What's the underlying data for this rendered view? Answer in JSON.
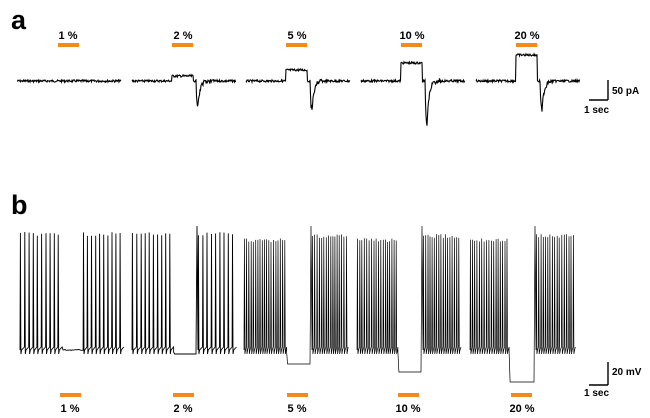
{
  "panels": [
    {
      "letter": "a",
      "recording": "current",
      "stimulus_labels": [
        "1 %",
        "2 %",
        "5 %",
        "10 %",
        "20 %"
      ],
      "stim_bar_color": "#f28a1c",
      "trace_color": "#000000",
      "scalebar": {
        "amplitude_label": "50 pA",
        "time_label": "1 sec"
      }
    },
    {
      "letter": "b",
      "recording": "voltage",
      "stimulus_labels": [
        "1 %",
        "2 %",
        "5 %",
        "10 %",
        "20 %"
      ],
      "stim_bar_color": "#f28a1c",
      "trace_color": "#000000",
      "scalebar": {
        "amplitude_label": "20 mV",
        "time_label": "1 sec"
      }
    }
  ]
}
